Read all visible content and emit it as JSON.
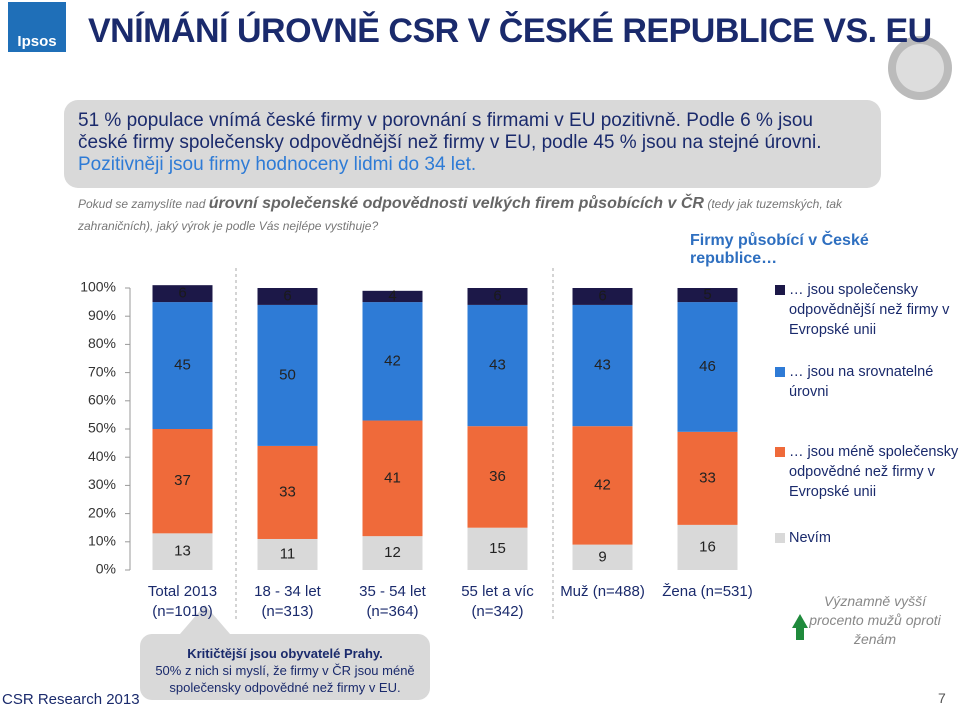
{
  "logo": "Ipsos",
  "title": "VNÍMÁNÍ ÚROVNĚ CSR V ČESKÉ REPUBLICE VS. EU",
  "summary": [
    "51 % populace vnímá české firmy v porovnání s firmami v EU pozitivně. Podle 6 % jsou české firmy společensky odpovědnější než firmy v EU, podle 45 % jsou na stejné úrovni. ",
    "Pozitivněji jsou firmy hodnoceny lidmi do 34 let."
  ],
  "question": [
    "Pokud se zamyslíte nad ",
    "úrovní společenské odpovědnosti velkých firem působících v ČR",
    " (tedy jak tuzemských, tak zahraničních), jaký výrok je podle Vás nejlépe vystihuje?"
  ],
  "callout": [
    "Kritičtější jsou obyvatelé Prahy.",
    "50% z nich si myslí, že firmy v ČR jsou méně společensky odpovědné než firmy v EU."
  ],
  "significance_note": "Významně vyšší procento mužů oproti ženám",
  "footer": "CSR Research 2013",
  "page_number": "7",
  "chart_data": {
    "type": "stacked_bar",
    "subtitle": "Firmy působící v České republice…",
    "categories": [
      "Total 2013 (n=1019)",
      "18 - 34 let (n=313)",
      "35 - 54 let (n=364)",
      "55 let a víc (n=342)",
      "Muž (n=488)",
      "Žena (n=531)"
    ],
    "series": [
      {
        "name": "Nevím",
        "color": "#d9d9d9",
        "values": [
          13,
          11,
          12,
          15,
          9,
          16
        ]
      },
      {
        "name": "… jsou méně společensky odpovědné než firmy v Evropské unii",
        "color": "#ef6a3a",
        "values": [
          37,
          33,
          41,
          36,
          42,
          33
        ]
      },
      {
        "name": "… jsou na srovnatelné úrovni",
        "color": "#2e7bd6",
        "values": [
          45,
          50,
          42,
          43,
          43,
          46
        ]
      },
      {
        "name": "… jsou společensky odpovědnější než firmy v Evropské unii",
        "color": "#1c1848",
        "values": [
          6,
          6,
          4,
          6,
          6,
          5
        ]
      }
    ],
    "ylim": [
      0,
      100
    ],
    "yticks": [
      {
        "value": 0,
        "label": "0%"
      },
      {
        "value": 10,
        "label": "10%"
      },
      {
        "value": 20,
        "label": "20%"
      },
      {
        "value": 30,
        "label": "30%"
      },
      {
        "value": 40,
        "label": "40%"
      },
      {
        "value": 50,
        "label": "50%"
      },
      {
        "value": 60,
        "label": "60%"
      },
      {
        "value": 70,
        "label": "70%"
      },
      {
        "value": 80,
        "label": "80%"
      },
      {
        "value": 90,
        "label": "90%"
      },
      {
        "value": 100,
        "label": "100%"
      }
    ],
    "legend": "right"
  }
}
